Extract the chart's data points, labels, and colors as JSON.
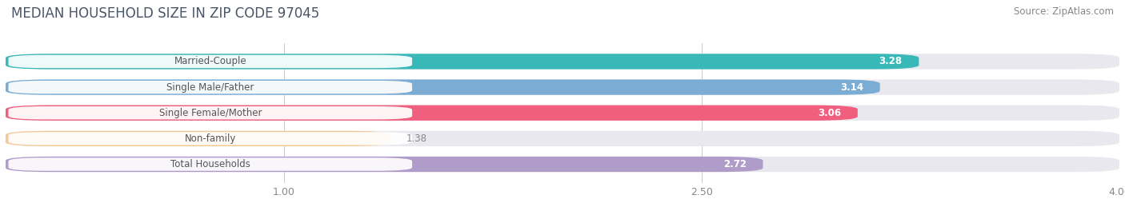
{
  "title": "MEDIAN HOUSEHOLD SIZE IN ZIP CODE 97045",
  "source": "Source: ZipAtlas.com",
  "categories": [
    "Married-Couple",
    "Single Male/Father",
    "Single Female/Mother",
    "Non-family",
    "Total Households"
  ],
  "values": [
    3.28,
    3.14,
    3.06,
    1.38,
    2.72
  ],
  "bar_colors": [
    "#39b8b8",
    "#7bacd4",
    "#f0607e",
    "#f5c898",
    "#b09cc8"
  ],
  "background_color": "#ffffff",
  "bar_background_color": "#e8e8ee",
  "xlim": [
    0,
    4.0
  ],
  "xticks": [
    1.0,
    2.5,
    4.0
  ],
  "bar_height": 0.6,
  "title_fontsize": 12,
  "label_fontsize": 8.5,
  "value_fontsize": 8.5,
  "tick_fontsize": 9,
  "source_fontsize": 8.5,
  "title_color": "#4a5568",
  "source_color": "#888888",
  "tick_color": "#888888",
  "value_color_inside": "#ffffff",
  "value_color_outside": "#888888",
  "label_color": "#555555"
}
